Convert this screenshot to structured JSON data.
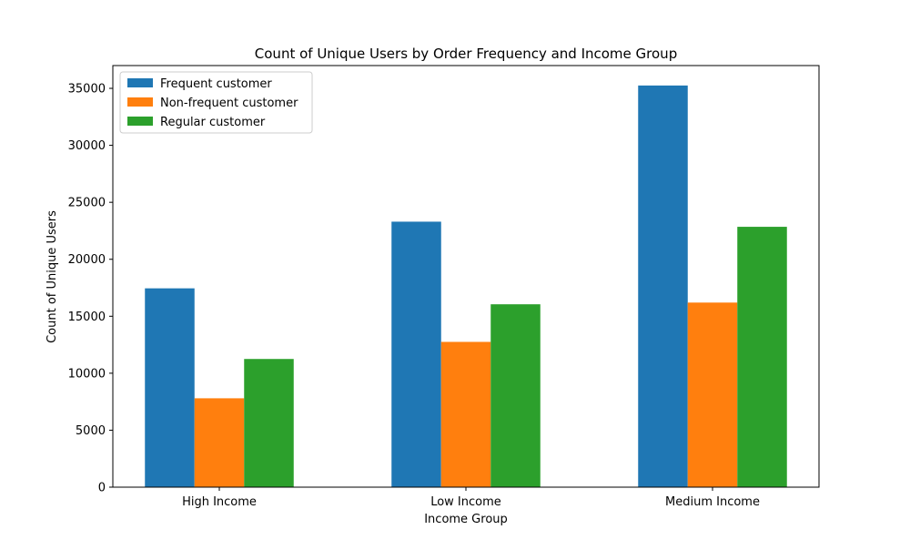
{
  "chart_data": {
    "type": "bar",
    "title": "Count of Unique Users by Order Frequency and Income Group",
    "xlabel": "Income Group",
    "ylabel": "Count of Unique Users",
    "categories": [
      "High Income",
      "Low Income",
      "Medium Income"
    ],
    "series": [
      {
        "name": "Frequent customer",
        "color": "#1f77b4",
        "values": [
          17450,
          23300,
          35250
        ]
      },
      {
        "name": "Non-frequent customer",
        "color": "#ff7f0e",
        "values": [
          7800,
          12750,
          16200
        ]
      },
      {
        "name": "Regular customer",
        "color": "#2ca02c",
        "values": [
          11250,
          16050,
          22850
        ]
      }
    ],
    "ylim": [
      0,
      37000
    ],
    "yticks": [
      0,
      5000,
      10000,
      15000,
      20000,
      25000,
      30000,
      35000
    ],
    "ytick_labels": [
      "0",
      "5000",
      "10000",
      "15000",
      "20000",
      "25000",
      "30000",
      "35000"
    ],
    "grid": false,
    "legend_position": "top-left"
  }
}
